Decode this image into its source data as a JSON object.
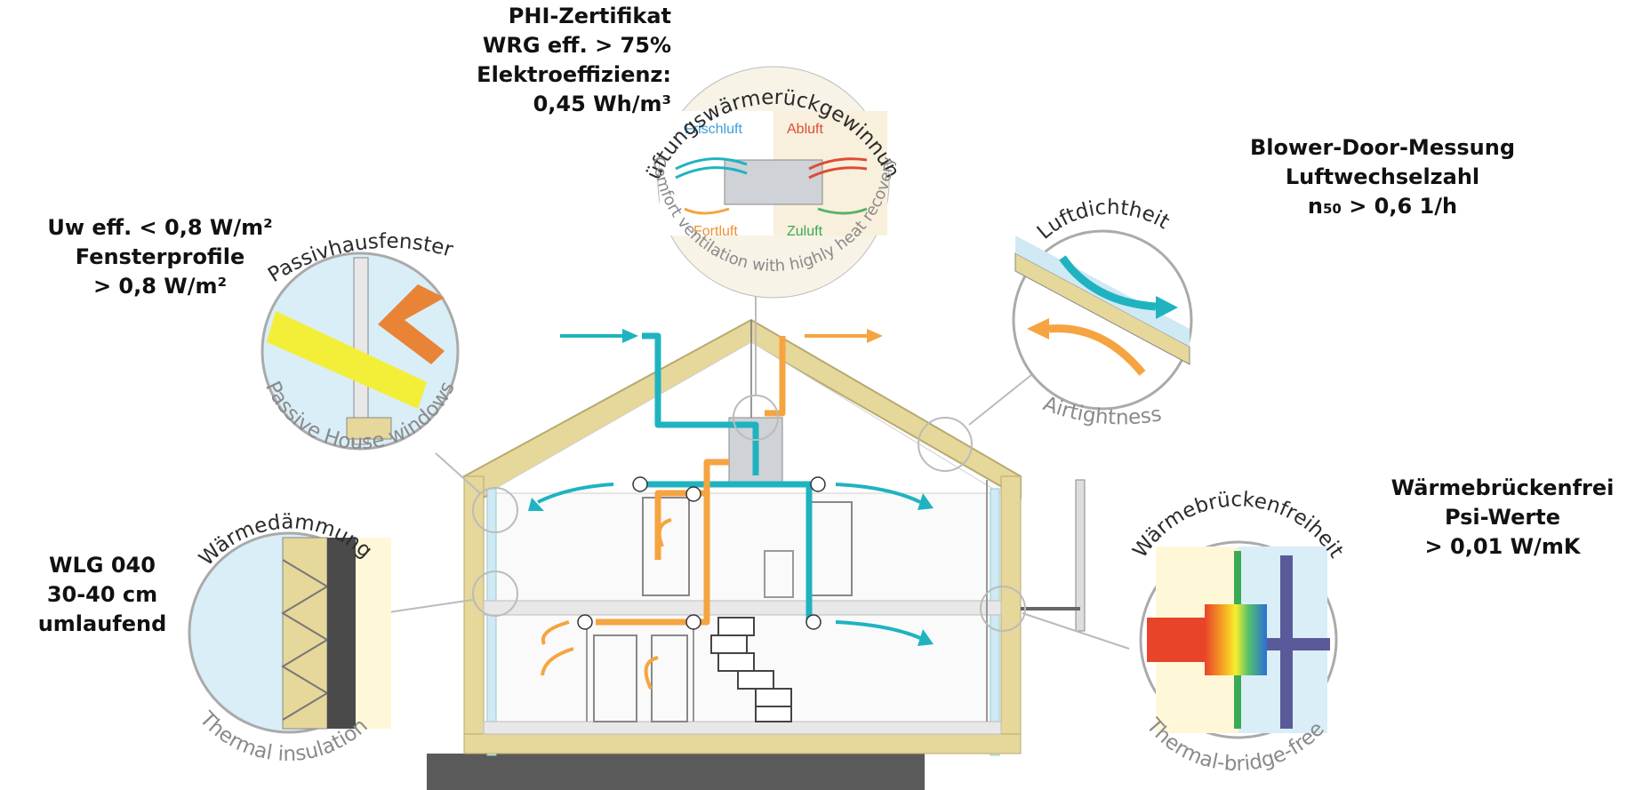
{
  "notes": {
    "phi": {
      "line1": "PHI-Zertifikat",
      "line2": "WRG eff. > 75%",
      "line3": "Elektroeffizienz:",
      "line4": "0,45 Wh/m³"
    },
    "blower": {
      "line1": "Blower-Door-Messung",
      "line2": "Luftwechselzahl",
      "line3_pre": "n",
      "line3_sub": "50",
      "line3_post": " > 0,6 1/h"
    },
    "window": {
      "line1": "Uw eff. < 0,8 W/m²",
      "line2": "Fensterprofile",
      "line3": "> 0,8 W/m²"
    },
    "bridge": {
      "line1": "Wärmebrückenfrei",
      "line2": "Psi-Werte",
      "line3": "> 0,01 W/mK"
    },
    "insulation": {
      "line1": "WLG 040",
      "line2": "30-40 cm",
      "line3": "umlaufend"
    }
  },
  "circles": {
    "ventilation": {
      "title": "Lüftungswärmerückgewinnung",
      "subtitle": "Comfort ventilation with highly heat recovery",
      "frischluft": "Frischluft",
      "abluft": "Abluft",
      "fortluft": "Fortluft",
      "zuluft": "Zuluft"
    },
    "windows": {
      "title": "Passivhausfenster",
      "subtitle": "Passive House windows"
    },
    "airtightness": {
      "title": "Luftdichtheit",
      "subtitle": "Airtightness"
    },
    "insulation": {
      "title": "Wärmedämmung",
      "subtitle": "Thermal insulation"
    },
    "thermal_bridge": {
      "title": "Wärmebrückenfreiheit",
      "subtitle": "Thermal-bridge-free"
    }
  },
  "colors": {
    "supply": "#1fb3c0",
    "exhaust": "#f5a440",
    "wall": "#e6d79a",
    "sky": "#cfe9f5",
    "ground": "#5a5a5a"
  }
}
